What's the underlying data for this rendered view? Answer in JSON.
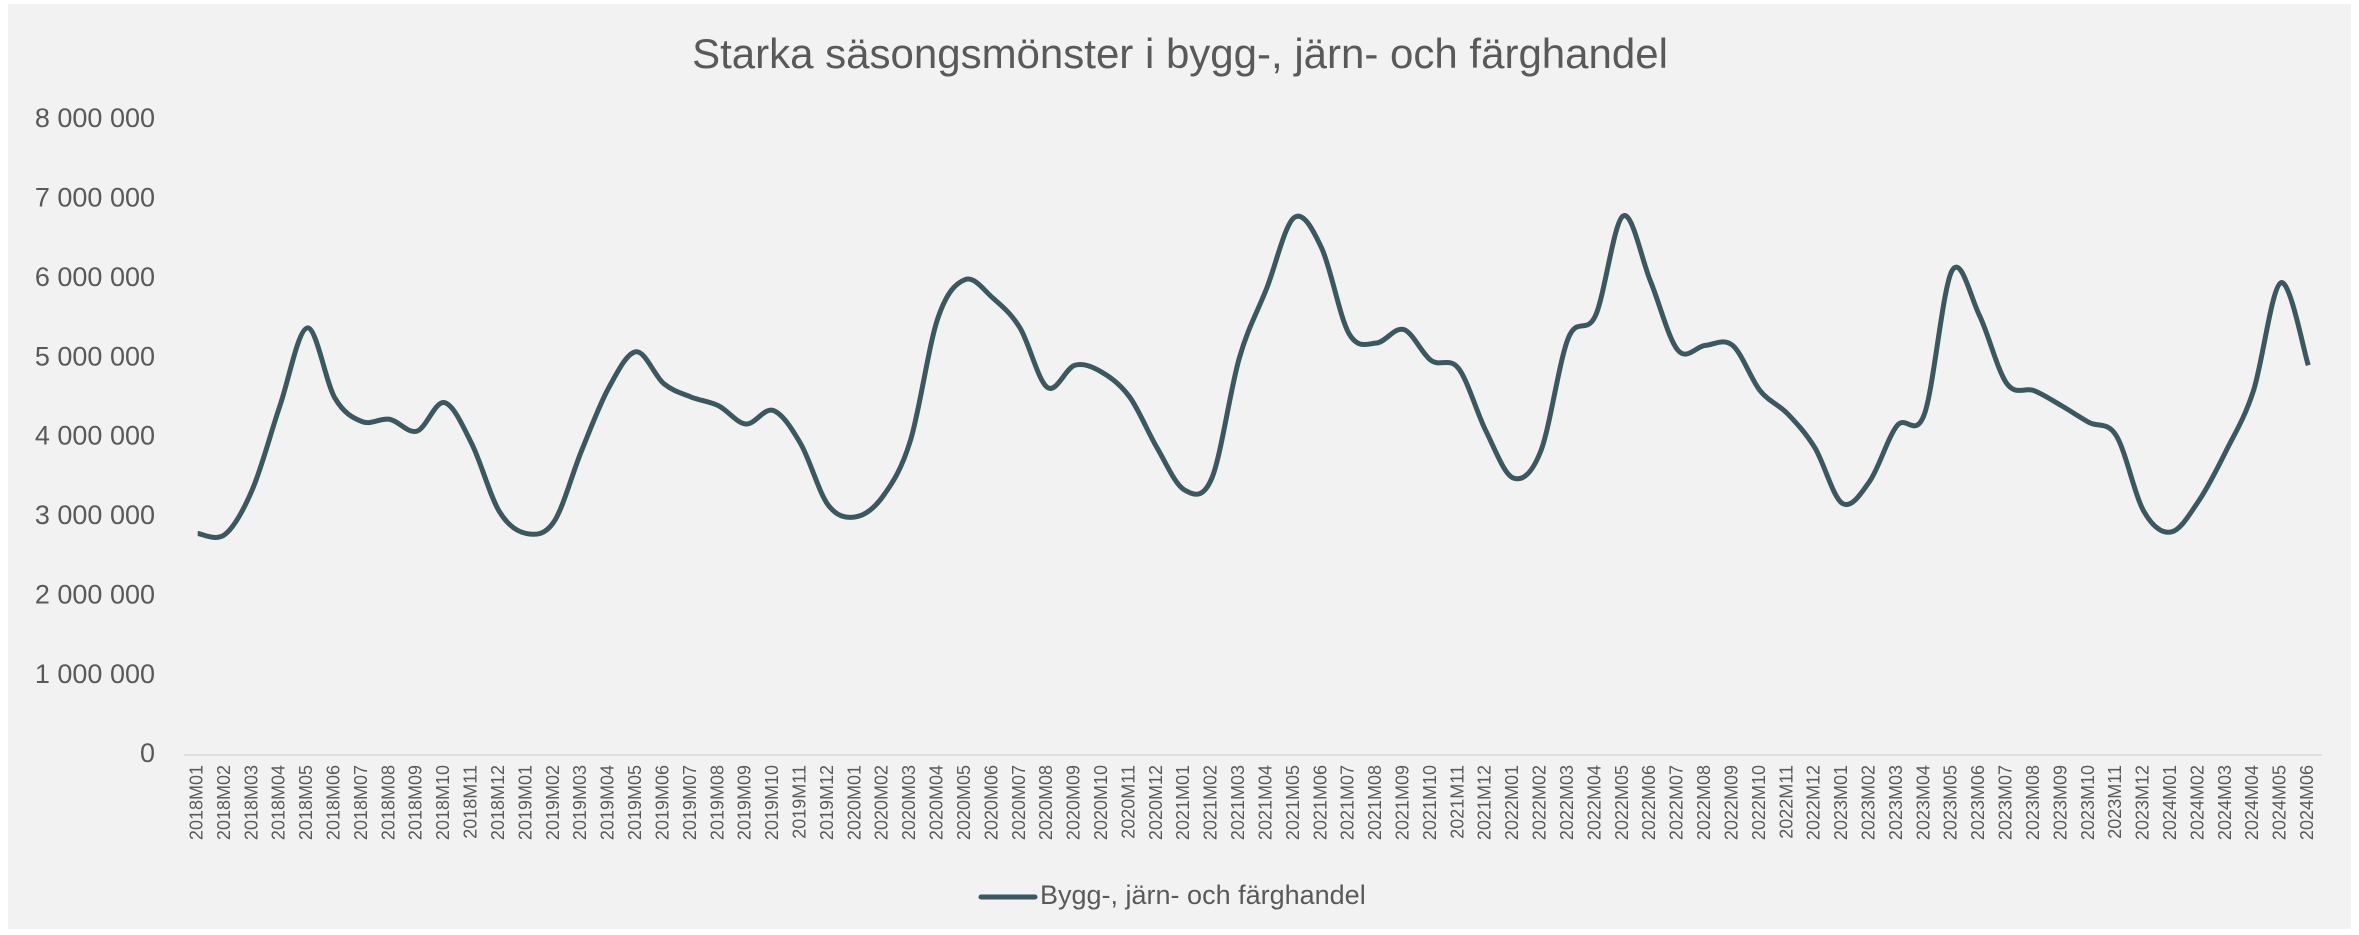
{
  "chart_data": {
    "type": "line",
    "title": "Starka säsongsmönster i bygg-, järn- och färghandel",
    "categories": [
      "2018M01",
      "2018M02",
      "2018M03",
      "2018M04",
      "2018M05",
      "2018M06",
      "2018M07",
      "2018M08",
      "2018M09",
      "2018M10",
      "2018M11",
      "2018M12",
      "2019M01",
      "2019M02",
      "2019M03",
      "2019M04",
      "2019M05",
      "2019M06",
      "2019M07",
      "2019M08",
      "2019M09",
      "2019M10",
      "2019M11",
      "2019M12",
      "2020M01",
      "2020M02",
      "2020M03",
      "2020M04",
      "2020M05",
      "2020M06",
      "2020M07",
      "2020M08",
      "2020M09",
      "2020M10",
      "2020M11",
      "2020M12",
      "2021M01",
      "2021M02",
      "2021M03",
      "2021M04",
      "2021M05",
      "2021M06",
      "2021M07",
      "2021M08",
      "2021M09",
      "2021M10",
      "2021M11",
      "2021M12",
      "2022M01",
      "2022M02",
      "2022M03",
      "2022M04",
      "2022M05",
      "2022M06",
      "2022M07",
      "2022M08",
      "2022M09",
      "2022M10",
      "2022M11",
      "2022M12",
      "2023M01",
      "2023M02",
      "2023M03",
      "2023M04",
      "2023M05",
      "2023M06",
      "2023M07",
      "2023M08",
      "2023M09",
      "2023M10",
      "2023M11",
      "2023M12",
      "2024M01",
      "2024M02",
      "2024M03",
      "2024M04",
      "2024M05",
      "2024M06"
    ],
    "series": [
      {
        "name": "Bygg-, järn- och färghandel",
        "color": "#3b5861",
        "values": [
          2790000,
          2780000,
          3350000,
          4400000,
          5380000,
          4500000,
          4200000,
          4230000,
          4080000,
          4440000,
          3920000,
          3070000,
          2790000,
          2940000,
          3830000,
          4630000,
          5080000,
          4680000,
          4510000,
          4400000,
          4170000,
          4340000,
          3920000,
          3150000,
          3000000,
          3260000,
          3960000,
          5500000,
          5990000,
          5760000,
          5380000,
          4630000,
          4910000,
          4820000,
          4510000,
          3870000,
          3340000,
          3490000,
          5000000,
          5880000,
          6770000,
          6390000,
          5310000,
          5190000,
          5360000,
          4970000,
          4870000,
          4080000,
          3490000,
          3830000,
          5250000,
          5540000,
          6790000,
          5970000,
          5100000,
          5160000,
          5160000,
          4590000,
          4300000,
          3870000,
          3170000,
          3450000,
          4150000,
          4300000,
          6100000,
          5540000,
          4680000,
          4590000,
          4400000,
          4190000,
          4020000,
          3070000,
          2810000,
          3200000,
          3830000,
          4590000,
          5950000,
          4910000
        ]
      }
    ],
    "ylim": [
      0,
      8000000
    ],
    "yticks": [
      0,
      {
        "value": 1000000,
        "label": "1 000 000"
      },
      {
        "value": 2000000,
        "label": "2 000 000"
      },
      {
        "value": 3000000,
        "label": "3 000 000"
      },
      {
        "value": 4000000,
        "label": "4 000 000"
      },
      {
        "value": 5000000,
        "label": "5 000 000"
      },
      {
        "value": 6000000,
        "label": "6 000 000"
      },
      {
        "value": 7000000,
        "label": "7 000 000"
      },
      {
        "value": 8000000,
        "label": "8 000 000"
      }
    ],
    "grid": false,
    "legend": "bottom"
  }
}
